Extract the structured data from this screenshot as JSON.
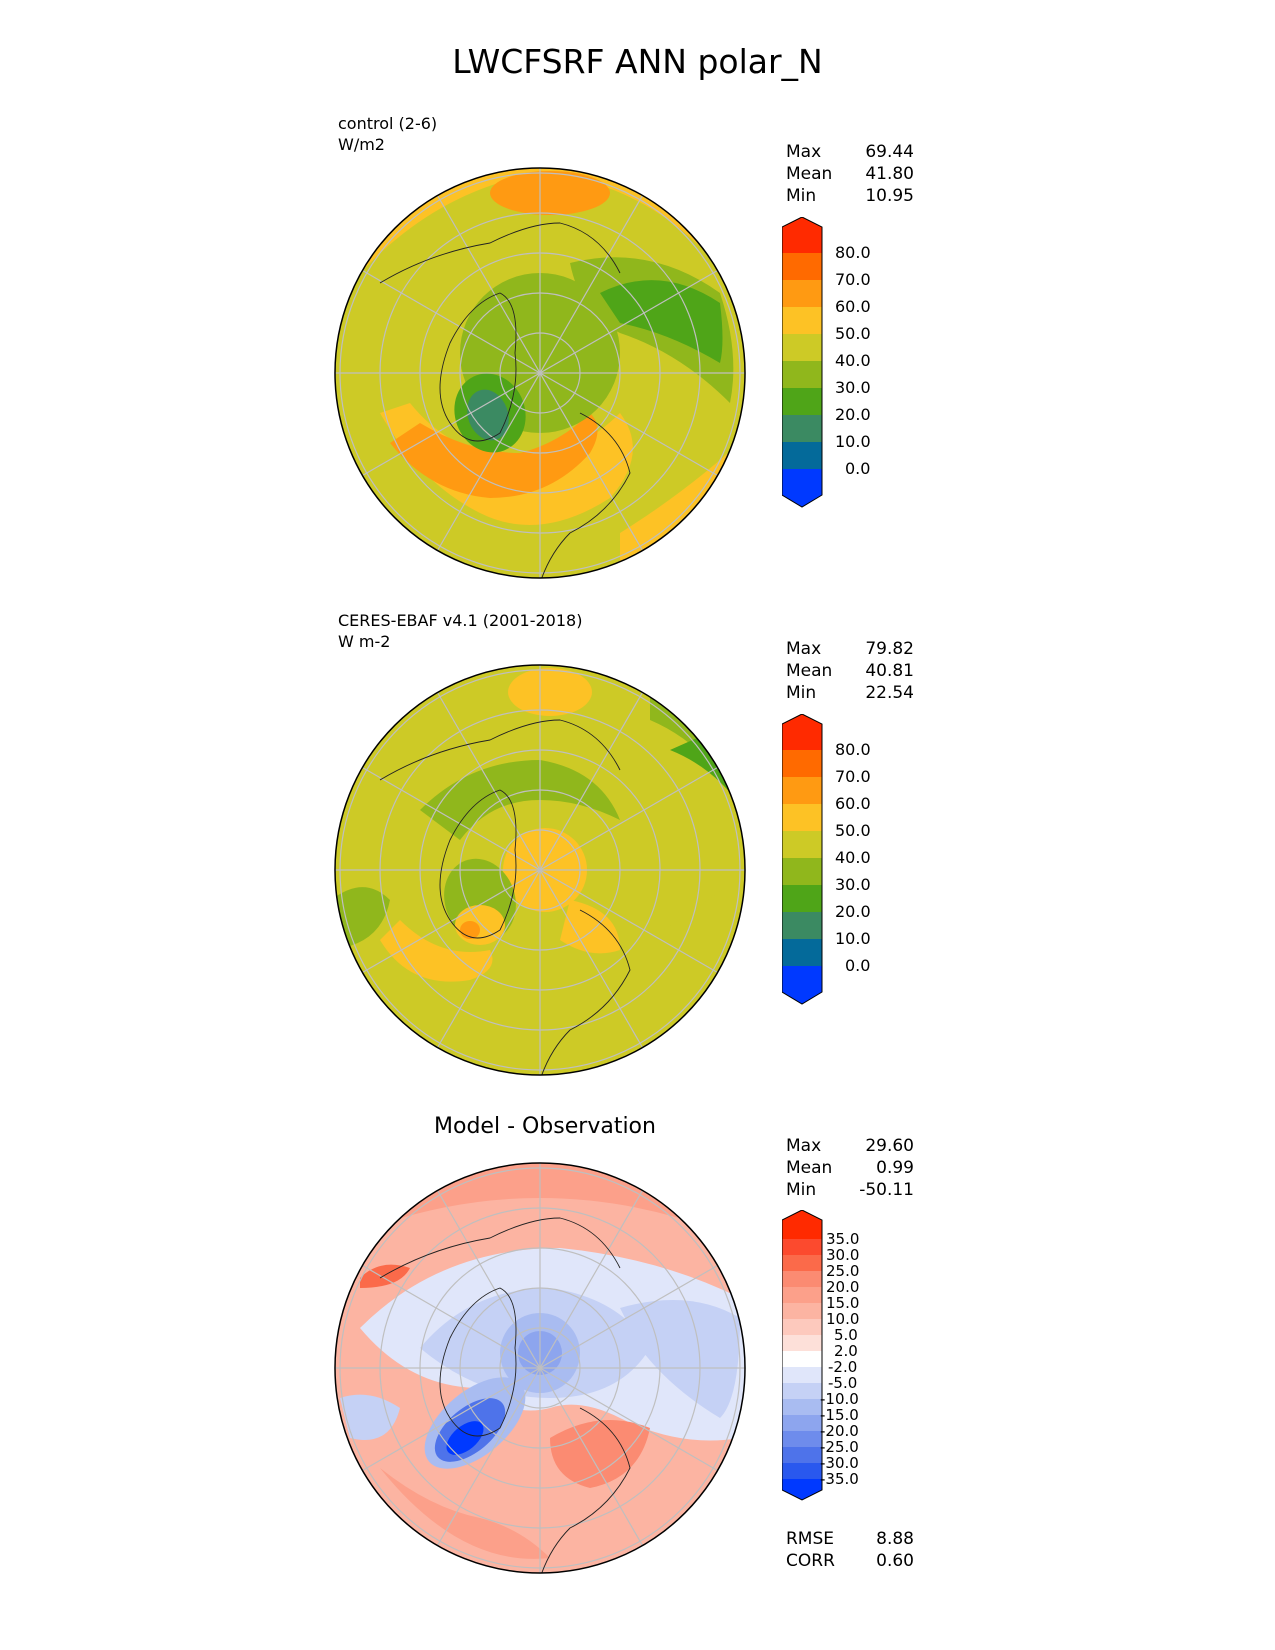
{
  "title": "LWCFSRF ANN polar_N",
  "panels": [
    {
      "key": "control",
      "label_line1": "control (2-6)",
      "label_line2": "W/m2",
      "stats": [
        {
          "name": "Max",
          "value": "69.44"
        },
        {
          "name": "Mean",
          "value": "41.80"
        },
        {
          "name": "Min",
          "value": "10.95"
        }
      ]
    },
    {
      "key": "obs",
      "label_line1": "CERES-EBAF v4.1 (2001-2018)",
      "label_line2": "W m-2",
      "stats": [
        {
          "name": "Max",
          "value": "79.82"
        },
        {
          "name": "Mean",
          "value": "40.81"
        },
        {
          "name": "Min",
          "value": "22.54"
        }
      ]
    },
    {
      "key": "diff",
      "title": "Model - Observation",
      "stats": [
        {
          "name": "Max",
          "value": "29.60"
        },
        {
          "name": "Mean",
          "value": "0.99"
        },
        {
          "name": "Min",
          "value": "-50.11"
        }
      ],
      "metrics": [
        {
          "name": "RMSE",
          "value": "8.88"
        },
        {
          "name": "CORR",
          "value": "0.60"
        }
      ]
    }
  ],
  "chart_data": [
    {
      "type": "heatmap",
      "projection": "north polar stereographic",
      "colorbar": {
        "ticks": [
          "80.0",
          "70.0",
          "60.0",
          "50.0",
          "40.0",
          "30.0",
          "20.0",
          "10.0",
          "0.0"
        ],
        "colors": [
          "#ff2a00",
          "#ff6a00",
          "#ff9a12",
          "#fdc225",
          "#cdca26",
          "#90b71c",
          "#4fa518",
          "#3b8a62",
          "#046a9a",
          "#0039ff"
        ],
        "extend": "both"
      },
      "regions": [
        {
          "name": "background",
          "value": 40
        },
        {
          "name": "outer ring band",
          "value": 55
        },
        {
          "name": "north Atlantic band",
          "value": 62
        },
        {
          "name": "Europe-Siberia band",
          "value": 60
        },
        {
          "name": "Greenland",
          "value": 22
        },
        {
          "name": "central Arctic",
          "value": 38
        },
        {
          "name": "North Pacific",
          "value": 33
        }
      ]
    },
    {
      "type": "heatmap",
      "projection": "north polar stereographic",
      "colorbar": {
        "ticks": [
          "80.0",
          "70.0",
          "60.0",
          "50.0",
          "40.0",
          "30.0",
          "20.0",
          "10.0",
          "0.0"
        ],
        "colors": [
          "#ff2a00",
          "#ff6a00",
          "#ff9a12",
          "#fdc225",
          "#cdca26",
          "#90b71c",
          "#4fa518",
          "#3b8a62",
          "#046a9a",
          "#0039ff"
        ],
        "extend": "both"
      },
      "regions": [
        {
          "name": "background",
          "value": 45
        },
        {
          "name": "pole",
          "value": 52
        },
        {
          "name": "north Atlantic",
          "value": 54
        },
        {
          "name": "Greenland",
          "value": 35
        },
        {
          "name": "Greenland coast",
          "value": 68
        },
        {
          "name": "North Pacific edge",
          "value": 32
        }
      ]
    },
    {
      "type": "heatmap",
      "projection": "north polar stereographic",
      "colorbar": {
        "ticks": [
          "35.0",
          "30.0",
          "25.0",
          "20.0",
          "15.0",
          "10.0",
          "5.0",
          "2.0",
          "-2.0",
          "-5.0",
          "-10.0",
          "-15.0",
          "-20.0",
          "-25.0",
          "-30.0",
          "-35.0"
        ],
        "colors": [
          "#ff2a00",
          "#fc4a2e",
          "#fb6a4a",
          "#fb8b72",
          "#fca08a",
          "#fcb4a2",
          "#fdc9bd",
          "#fde0d9",
          "#ffffff",
          "#e0e6fa",
          "#c5d1f5",
          "#a9bcf1",
          "#8da5ee",
          "#6e8cec",
          "#4e73ea",
          "#2958ee",
          "#0039ff"
        ],
        "extend": "both"
      },
      "regions": [
        {
          "name": "outer ring",
          "value": 12
        },
        {
          "name": "central Arctic",
          "value": -10
        },
        {
          "name": "pole",
          "value": -18
        },
        {
          "name": "North Pacific",
          "value": -8
        },
        {
          "name": "Greenland",
          "value": -35
        },
        {
          "name": "north Atlantic",
          "value": 18
        }
      ]
    }
  ]
}
